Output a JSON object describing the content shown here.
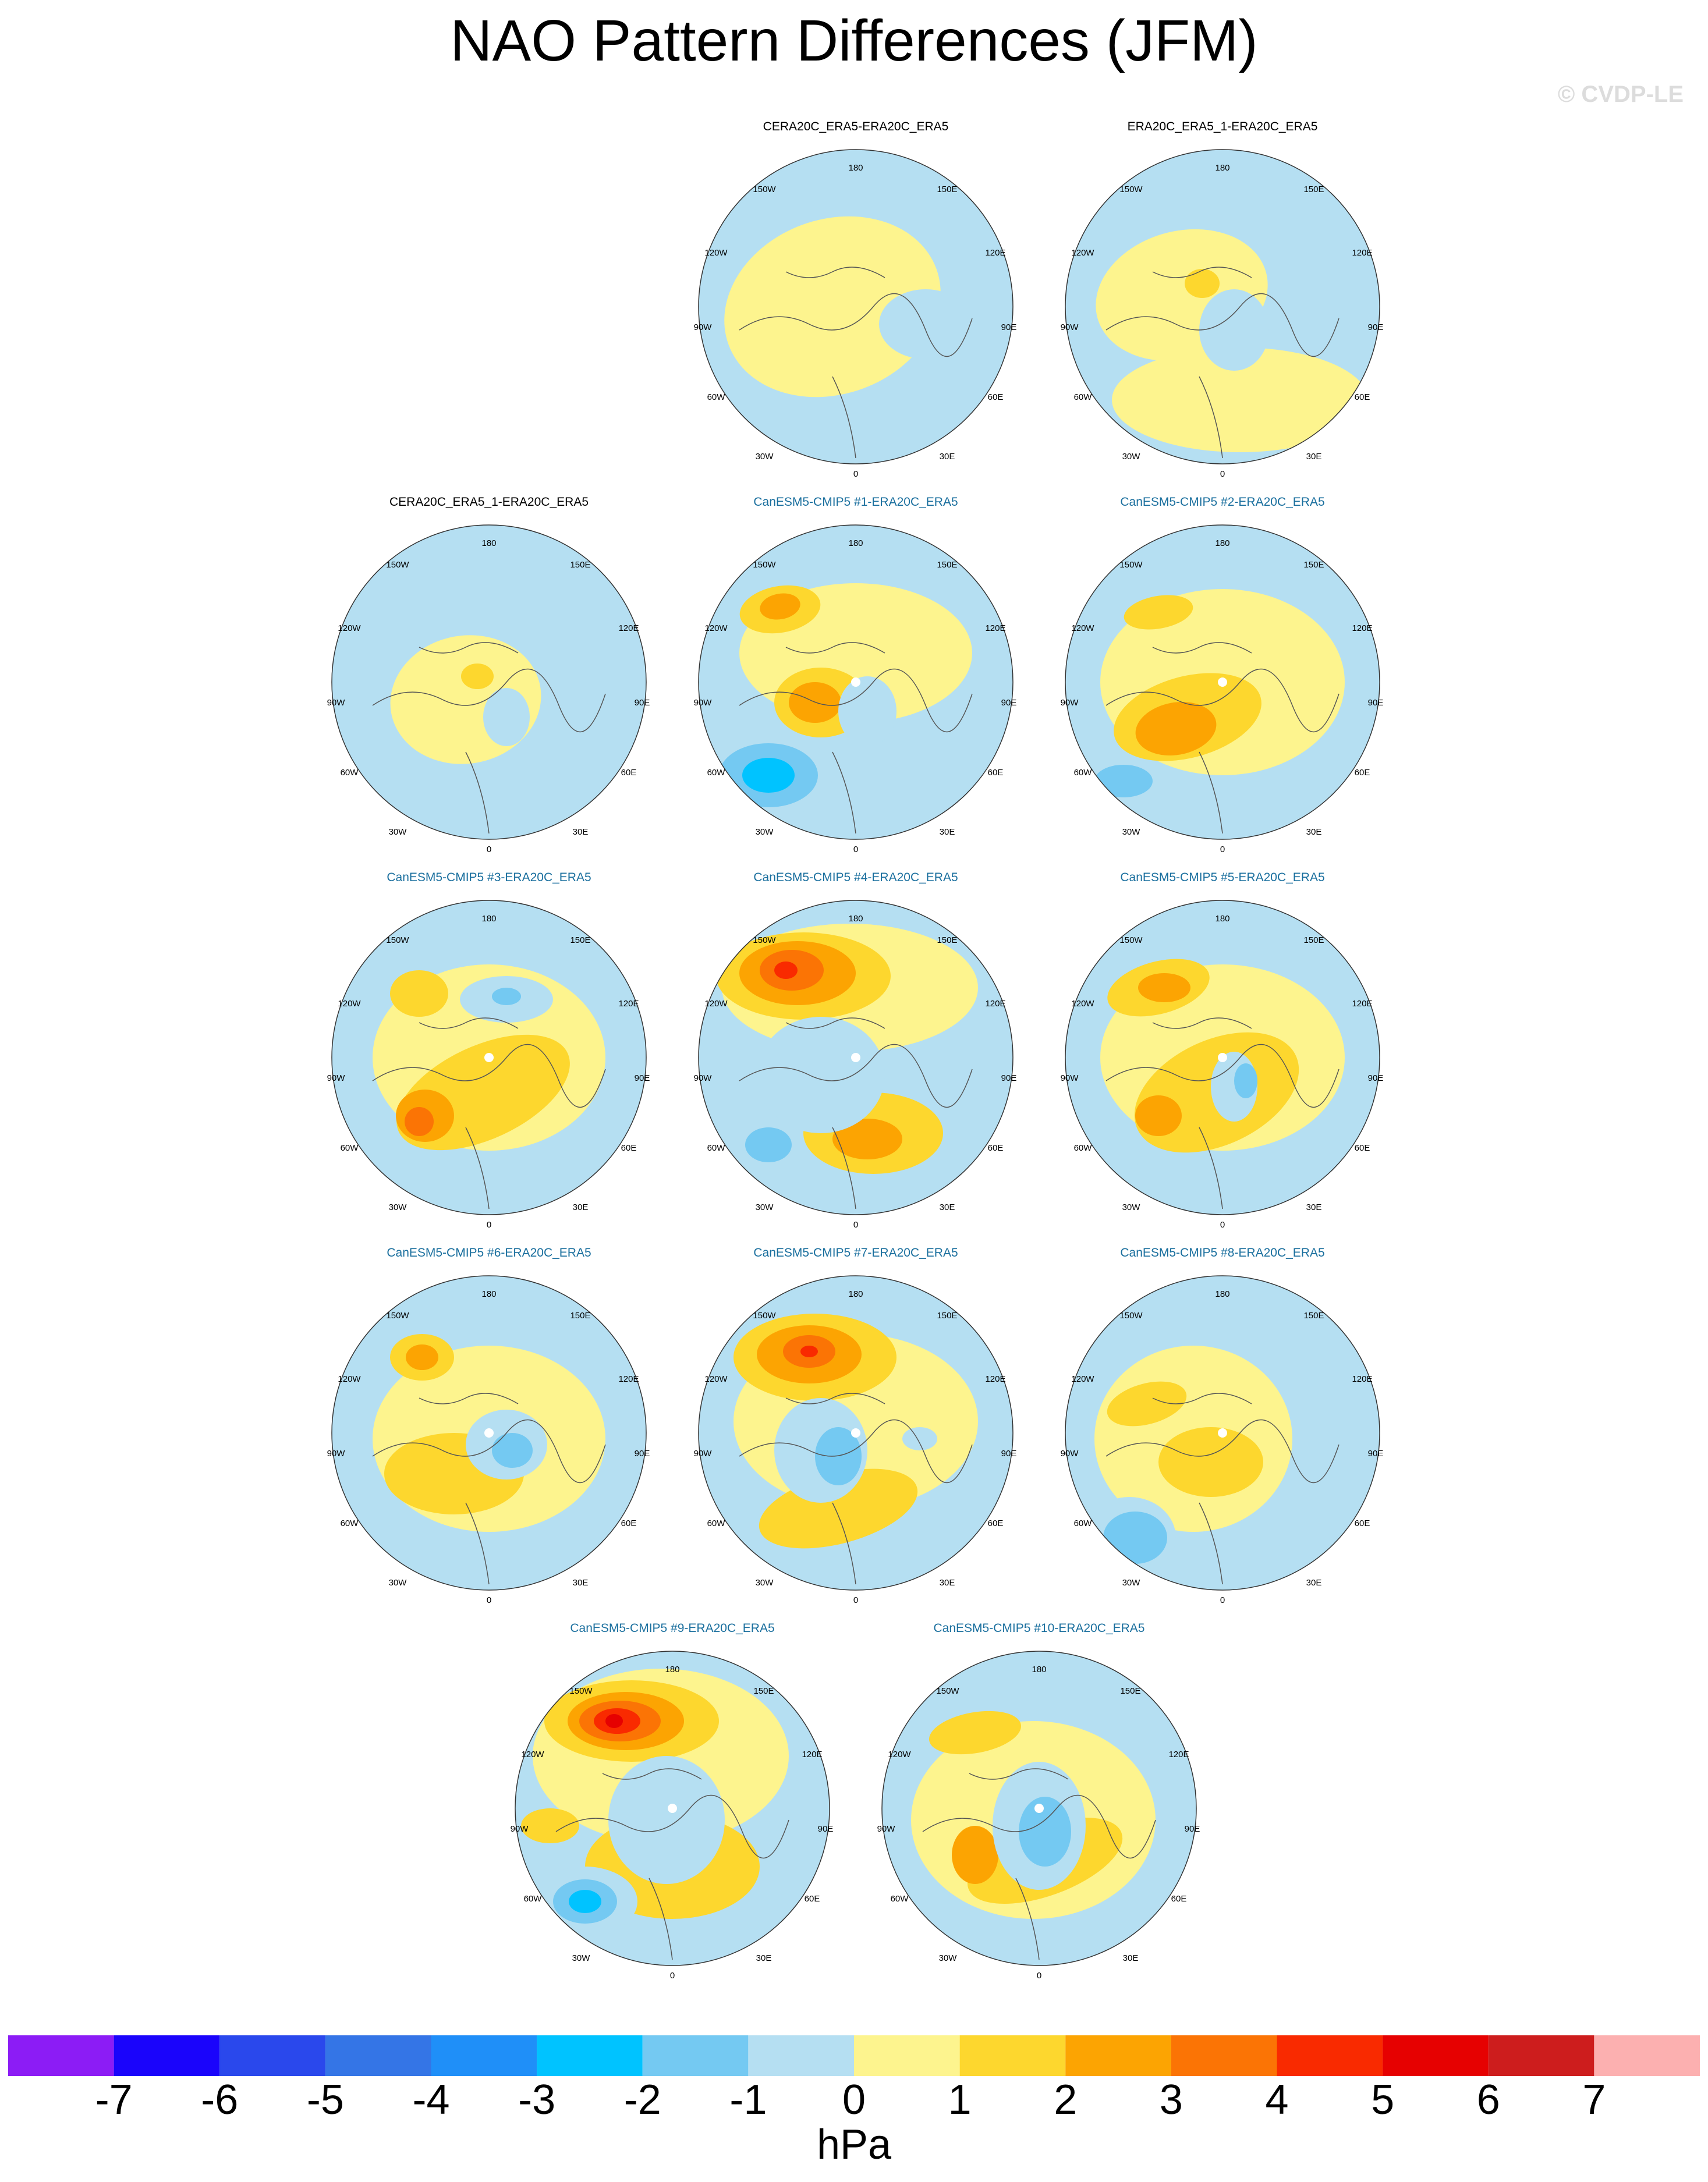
{
  "title": "NAO Pattern Differences (JFM)",
  "watermark": "© CVDP-LE",
  "lon_labels": {
    "top": "180",
    "top_left": "150W",
    "top_right": "150E",
    "upper_left": "120W",
    "upper_right": "120E",
    "left": "90W",
    "right": "90E",
    "lower_left": "60W",
    "lower_right": "60E",
    "bottom_left": "30W",
    "bottom_right": "30E",
    "bottom": "0"
  },
  "panels": [
    {
      "title": "CERA20C_ERA5-ERA20C_ERA5",
      "kind": "obs"
    },
    {
      "title": "ERA20C_ERA5_1-ERA20C_ERA5",
      "kind": "obs"
    },
    {
      "title": "CERA20C_ERA5_1-ERA20C_ERA5",
      "kind": "obs"
    },
    {
      "title": "CanESM5-CMIP5 #1-ERA20C_ERA5",
      "kind": "model"
    },
    {
      "title": "CanESM5-CMIP5 #2-ERA20C_ERA5",
      "kind": "model"
    },
    {
      "title": "CanESM5-CMIP5 #3-ERA20C_ERA5",
      "kind": "model"
    },
    {
      "title": "CanESM5-CMIP5 #4-ERA20C_ERA5",
      "kind": "model"
    },
    {
      "title": "CanESM5-CMIP5 #5-ERA20C_ERA5",
      "kind": "model"
    },
    {
      "title": "CanESM5-CMIP5 #6-ERA20C_ERA5",
      "kind": "model"
    },
    {
      "title": "CanESM5-CMIP5 #7-ERA20C_ERA5",
      "kind": "model"
    },
    {
      "title": "CanESM5-CMIP5 #8-ERA20C_ERA5",
      "kind": "model"
    },
    {
      "title": "CanESM5-CMIP5 #9-ERA20C_ERA5",
      "kind": "model"
    },
    {
      "title": "CanESM5-CMIP5 #10-ERA20C_ERA5",
      "kind": "model"
    }
  ],
  "colorbar": {
    "colors": [
      "#8c1cf5",
      "#1a04fb",
      "#2a48ec",
      "#3475e6",
      "#1f8ff8",
      "#00c3ff",
      "#74c9f2",
      "#b5dff2",
      "#fdf48e",
      "#fdd72e",
      "#fca402",
      "#fb7405",
      "#f92a00",
      "#e60101",
      "#cd1d1d",
      "#fcb0b0"
    ],
    "labels": [
      "-7",
      "-6",
      "-5",
      "-4",
      "-3",
      "-2",
      "-1",
      "0",
      "1",
      "2",
      "3",
      "4",
      "5",
      "6",
      "7"
    ],
    "unit": "hPa"
  },
  "colors": {
    "neg_1": "#b5dff2",
    "neg_2": "#74c9f2",
    "neg_3": "#00c3ff",
    "pos_1": "#fdf48e",
    "pos_2": "#fdd72e",
    "pos_3": "#fca402",
    "pos_4": "#fb7405",
    "pos_5": "#f92a00",
    "pos_6": "#e60101",
    "model_title": "#1a6f9e"
  }
}
